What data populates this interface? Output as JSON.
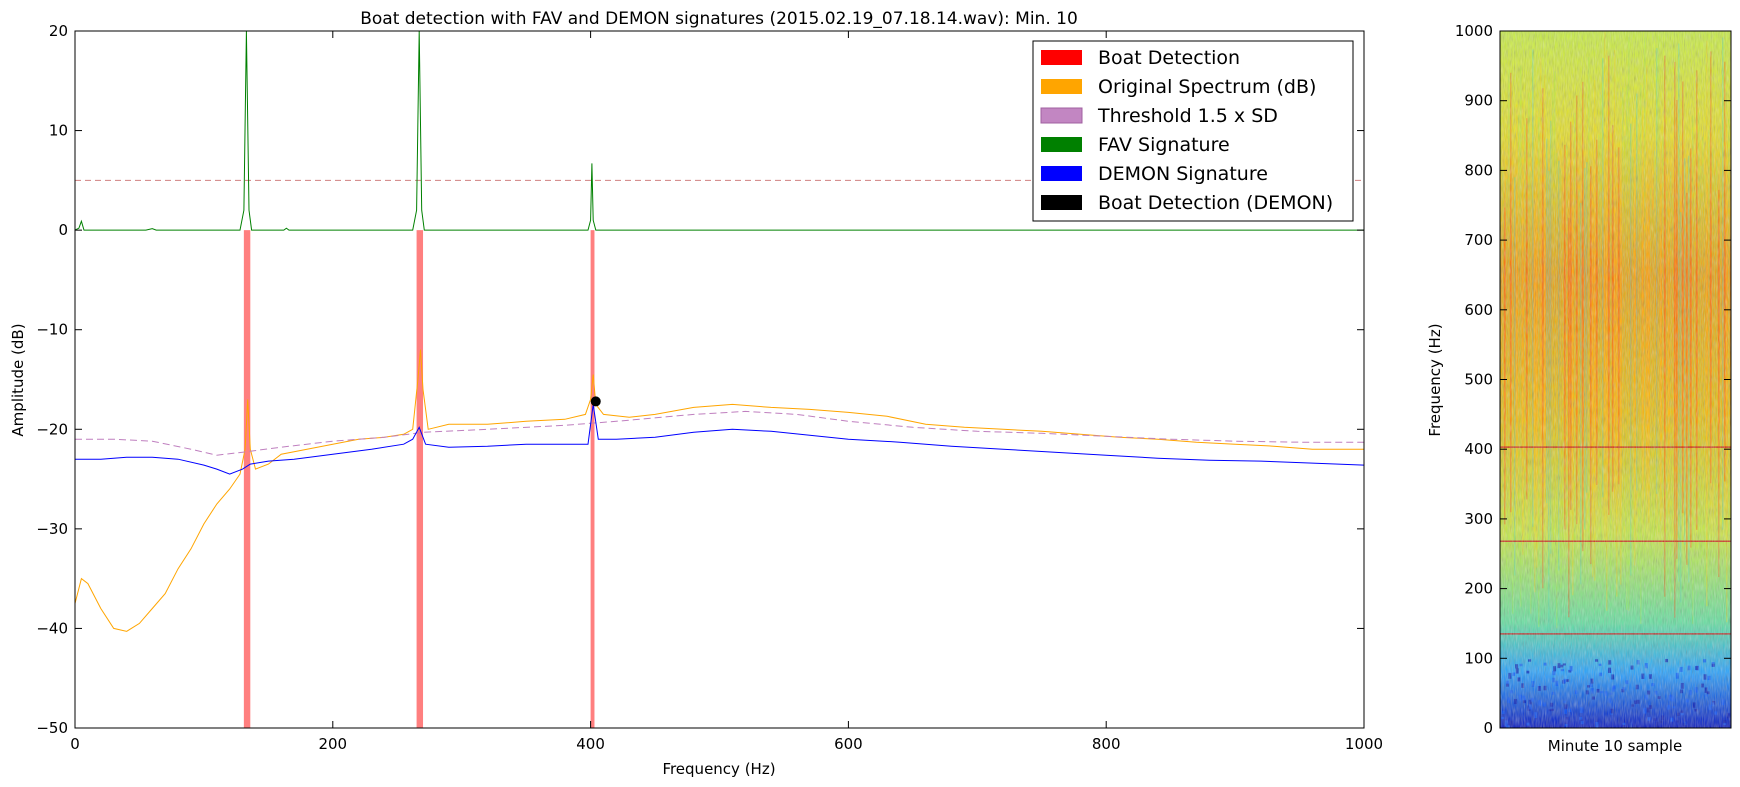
{
  "chart_data": [
    {
      "type": "line",
      "title": "Boat detection with FAV and DEMON signatures (2015.02.19_07.18.14.wav): Min. 10",
      "xlabel": "Frequency (Hz)",
      "ylabel": "Amplitude (dB)",
      "xlim": [
        0,
        1000
      ],
      "ylim": [
        -50,
        20
      ],
      "x_ticks": [
        0,
        200,
        400,
        600,
        800,
        1000
      ],
      "y_ticks": [
        20,
        10,
        0,
        -10,
        -20,
        -30,
        -40,
        -50
      ],
      "x_tick_labels": [
        "0",
        "200",
        "400",
        "600",
        "800",
        "1000"
      ],
      "y_tick_labels": [
        "20",
        "10",
        "0",
        "−10",
        "−20",
        "−30",
        "−40",
        "−50"
      ],
      "grid": false,
      "legend_position": "top-right",
      "legend": [
        {
          "label": "Boat Detection",
          "color": "#ff0000"
        },
        {
          "label": "Original Spectrum (dB)",
          "color": "#ffa500"
        },
        {
          "label": "Threshold 1.5 x SD",
          "color": "#bf7fbf"
        },
        {
          "label": "FAV Signature",
          "color": "#008000"
        },
        {
          "label": "DEMON Signature",
          "color": "#0000ff"
        },
        {
          "label": "Boat Detection (DEMON)",
          "color": "#000000"
        }
      ],
      "fav_threshold_level": 5,
      "boat_detection_bands": [
        {
          "x_start": 131,
          "x_end": 136,
          "y_top": 0,
          "y_bottom": -50
        },
        {
          "x_start": 265,
          "x_end": 270,
          "y_top": 0,
          "y_bottom": -50
        },
        {
          "x_start": 400,
          "x_end": 403,
          "y_top": 0,
          "y_bottom": -50
        }
      ],
      "demon_detection_points": [
        {
          "x": 404,
          "y": -17.2
        }
      ],
      "series": [
        {
          "name": "FAV Signature",
          "color": "#008000",
          "points": [
            [
              0,
              0
            ],
            [
              3,
              0.2
            ],
            [
              5,
              0.9
            ],
            [
              7,
              0
            ],
            [
              55,
              0
            ],
            [
              60,
              0.15
            ],
            [
              63,
              0
            ],
            [
              100,
              0
            ],
            [
              128,
              0
            ],
            [
              131,
              2
            ],
            [
              133,
              20
            ],
            [
              135,
              2
            ],
            [
              137,
              0
            ],
            [
              162,
              0
            ],
            [
              164,
              0.2
            ],
            [
              166,
              0
            ],
            [
              262,
              0
            ],
            [
              265,
              2
            ],
            [
              267,
              20
            ],
            [
              269,
              2
            ],
            [
              271,
              0
            ],
            [
              398,
              0
            ],
            [
              400,
              1
            ],
            [
              401,
              6.7
            ],
            [
              402,
              1
            ],
            [
              404,
              0
            ],
            [
              1000,
              0
            ]
          ]
        },
        {
          "name": "Original Spectrum (dB)",
          "color": "#ffa500",
          "points": [
            [
              0,
              -37.5
            ],
            [
              5,
              -35
            ],
            [
              10,
              -35.5
            ],
            [
              20,
              -38
            ],
            [
              30,
              -40
            ],
            [
              40,
              -40.3
            ],
            [
              50,
              -39.5
            ],
            [
              60,
              -38
            ],
            [
              70,
              -36.5
            ],
            [
              80,
              -34
            ],
            [
              90,
              -32
            ],
            [
              100,
              -29.5
            ],
            [
              110,
              -27.5
            ],
            [
              120,
              -26
            ],
            [
              128,
              -24.5
            ],
            [
              132,
              -22
            ],
            [
              134,
              -17
            ],
            [
              136,
              -22
            ],
            [
              140,
              -24
            ],
            [
              150,
              -23.5
            ],
            [
              160,
              -22.5
            ],
            [
              180,
              -22
            ],
            [
              200,
              -21.5
            ],
            [
              220,
              -21
            ],
            [
              240,
              -20.8
            ],
            [
              255,
              -20.5
            ],
            [
              262,
              -20
            ],
            [
              266,
              -15
            ],
            [
              268,
              -12
            ],
            [
              270,
              -16
            ],
            [
              274,
              -20
            ],
            [
              290,
              -19.5
            ],
            [
              320,
              -19.5
            ],
            [
              350,
              -19.2
            ],
            [
              380,
              -19
            ],
            [
              396,
              -18.5
            ],
            [
              400,
              -17
            ],
            [
              402,
              -14.5
            ],
            [
              404,
              -17.5
            ],
            [
              410,
              -18.5
            ],
            [
              430,
              -18.8
            ],
            [
              450,
              -18.5
            ],
            [
              480,
              -17.8
            ],
            [
              510,
              -17.5
            ],
            [
              540,
              -17.8
            ],
            [
              570,
              -18
            ],
            [
              600,
              -18.3
            ],
            [
              630,
              -18.7
            ],
            [
              660,
              -19.5
            ],
            [
              690,
              -19.8
            ],
            [
              720,
              -20
            ],
            [
              750,
              -20.2
            ],
            [
              780,
              -20.5
            ],
            [
              810,
              -20.8
            ],
            [
              840,
              -21
            ],
            [
              870,
              -21.3
            ],
            [
              900,
              -21.5
            ],
            [
              930,
              -21.7
            ],
            [
              960,
              -22
            ],
            [
              1000,
              -22
            ]
          ]
        },
        {
          "name": "Threshold 1.5 x SD",
          "color": "#bf7fbf",
          "dashed": true,
          "points": [
            [
              0,
              -21
            ],
            [
              30,
              -21
            ],
            [
              60,
              -21.2
            ],
            [
              90,
              -22
            ],
            [
              110,
              -22.6
            ],
            [
              130,
              -22.3
            ],
            [
              160,
              -21.8
            ],
            [
              200,
              -21.2
            ],
            [
              240,
              -20.8
            ],
            [
              270,
              -20.3
            ],
            [
              320,
              -20
            ],
            [
              380,
              -19.6
            ],
            [
              420,
              -19.2
            ],
            [
              480,
              -18.5
            ],
            [
              520,
              -18.2
            ],
            [
              560,
              -18.5
            ],
            [
              600,
              -19.2
            ],
            [
              650,
              -19.8
            ],
            [
              700,
              -20.2
            ],
            [
              750,
              -20.4
            ],
            [
              800,
              -20.7
            ],
            [
              850,
              -21
            ],
            [
              900,
              -21.2
            ],
            [
              950,
              -21.3
            ],
            [
              1000,
              -21.3
            ]
          ]
        },
        {
          "name": "DEMON Signature",
          "color": "#0000ff",
          "points": [
            [
              0,
              -23
            ],
            [
              20,
              -23
            ],
            [
              40,
              -22.8
            ],
            [
              60,
              -22.8
            ],
            [
              80,
              -23
            ],
            [
              100,
              -23.6
            ],
            [
              110,
              -24
            ],
            [
              120,
              -24.5
            ],
            [
              130,
              -24
            ],
            [
              136,
              -23.5
            ],
            [
              150,
              -23.2
            ],
            [
              170,
              -23
            ],
            [
              200,
              -22.5
            ],
            [
              230,
              -22
            ],
            [
              255,
              -21.5
            ],
            [
              262,
              -21
            ],
            [
              267,
              -19.8
            ],
            [
              272,
              -21.5
            ],
            [
              290,
              -21.8
            ],
            [
              320,
              -21.7
            ],
            [
              350,
              -21.5
            ],
            [
              380,
              -21.5
            ],
            [
              398,
              -21.5
            ],
            [
              402,
              -17.5
            ],
            [
              406,
              -21
            ],
            [
              420,
              -21
            ],
            [
              450,
              -20.8
            ],
            [
              480,
              -20.3
            ],
            [
              510,
              -20
            ],
            [
              540,
              -20.2
            ],
            [
              570,
              -20.6
            ],
            [
              600,
              -21
            ],
            [
              640,
              -21.3
            ],
            [
              680,
              -21.7
            ],
            [
              720,
              -22
            ],
            [
              760,
              -22.3
            ],
            [
              800,
              -22.6
            ],
            [
              840,
              -22.9
            ],
            [
              880,
              -23.1
            ],
            [
              920,
              -23.2
            ],
            [
              960,
              -23.4
            ],
            [
              1000,
              -23.6
            ]
          ]
        }
      ]
    },
    {
      "type": "heatmap",
      "title": "",
      "xlabel": "Minute 10 sample",
      "ylabel": "Frequency (Hz)",
      "ylim": [
        0,
        1000
      ],
      "y_ticks": [
        0,
        100,
        200,
        300,
        400,
        500,
        600,
        700,
        800,
        900,
        1000
      ],
      "y_tick_labels": [
        "0",
        "100",
        "200",
        "300",
        "400",
        "500",
        "600",
        "700",
        "800",
        "900",
        "1000"
      ],
      "colormap": "jet",
      "horizontal_lines_hz": [
        135,
        268,
        403
      ],
      "colors": {
        "low": "#0000cc",
        "mid": "#a0f040",
        "high": "#ff3a00"
      }
    }
  ]
}
